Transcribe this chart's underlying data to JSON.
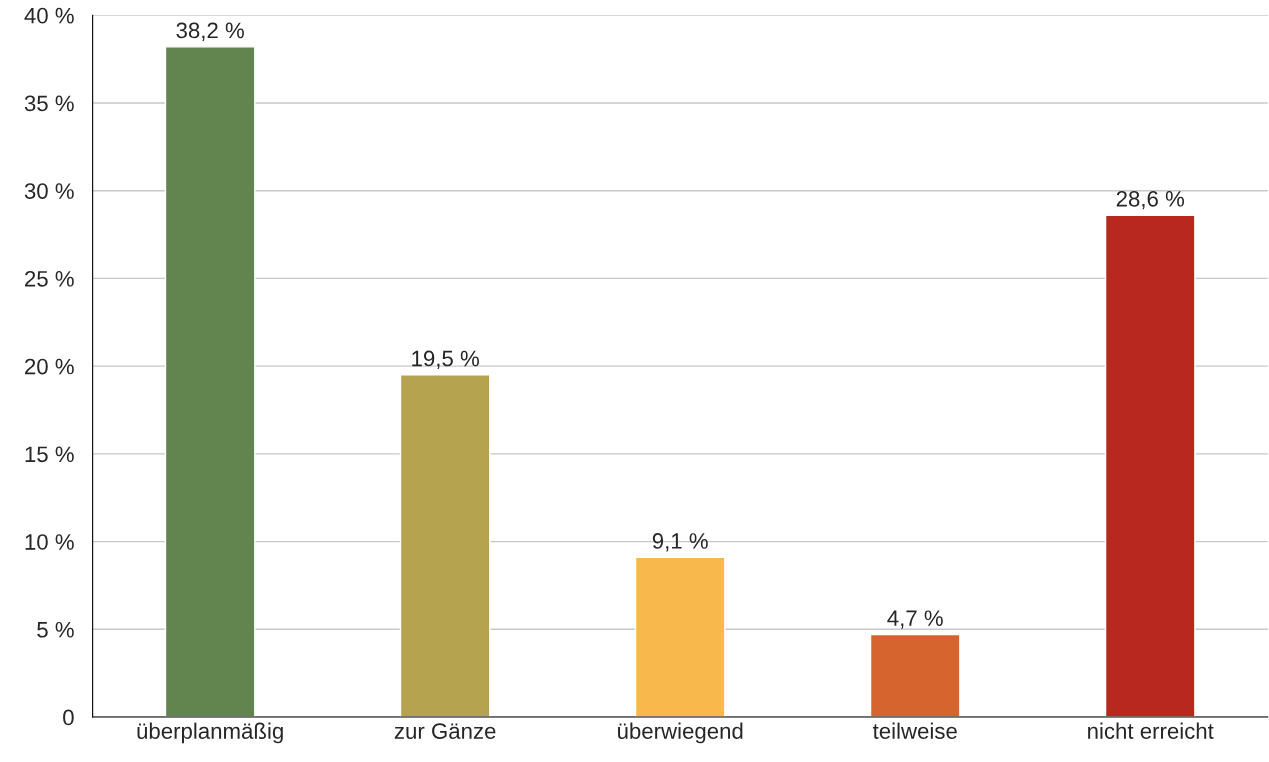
{
  "chart_data": {
    "type": "bar",
    "categories": [
      "überplanmäßig",
      "zur Gänze",
      "überwiegend",
      "teilweise",
      "nicht erreicht"
    ],
    "values": [
      38.2,
      19.5,
      9.1,
      4.7,
      28.6
    ],
    "colors": [
      "#62854f",
      "#b5a350",
      "#f8b84c",
      "#d6642e",
      "#b9281f"
    ],
    "value_labels": [
      "38,2 %",
      "19,5 %",
      "9,1 %",
      "4,7 %",
      "28,6 %"
    ],
    "ylim": [
      0,
      40
    ],
    "yticks": [
      {
        "value": 0,
        "label": "0"
      },
      {
        "value": 5,
        "label": "5 %"
      },
      {
        "value": 10,
        "label": "10 %"
      },
      {
        "value": 15,
        "label": "15 %"
      },
      {
        "value": 20,
        "label": "20 %"
      },
      {
        "value": 25,
        "label": "25 %"
      },
      {
        "value": 30,
        "label": "30 %"
      },
      {
        "value": 35,
        "label": "35 %"
      },
      {
        "value": 40,
        "label": "40 %"
      }
    ],
    "grid": "y",
    "legend": false
  }
}
